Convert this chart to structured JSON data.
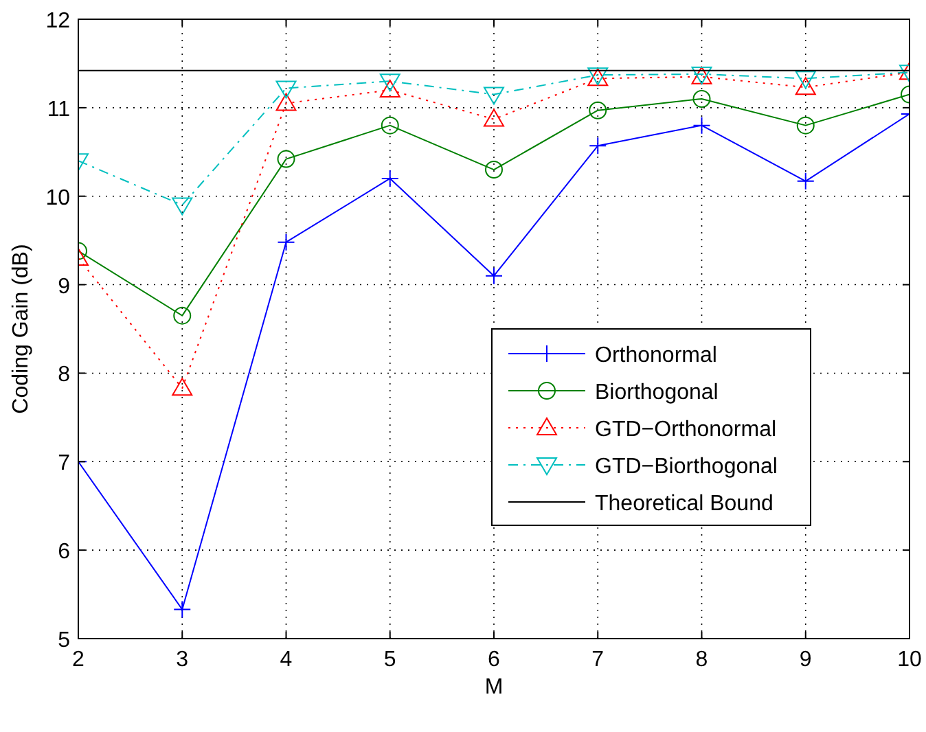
{
  "chart_data": {
    "type": "line",
    "xlabel": "M",
    "ylabel": "Coding Gain (dB)",
    "x": [
      2,
      3,
      4,
      5,
      6,
      7,
      8,
      9,
      10
    ],
    "series": [
      {
        "name": "Orthonormal",
        "color": "#0000ff",
        "marker": "cross",
        "line_style": "solid",
        "values": [
          7.0,
          5.33,
          9.48,
          10.2,
          9.1,
          10.57,
          10.8,
          10.17,
          10.93
        ]
      },
      {
        "name": "Biorthogonal",
        "color": "#008000",
        "marker": "circle",
        "line_style": "solid",
        "values": [
          9.38,
          8.65,
          10.42,
          10.8,
          10.3,
          10.97,
          11.1,
          10.8,
          11.15
        ]
      },
      {
        "name": "GTD−Orthonormal",
        "color": "#ff0000",
        "marker": "triangle",
        "line_style": "dotted",
        "values": [
          9.3,
          7.83,
          11.05,
          11.2,
          10.87,
          11.33,
          11.35,
          11.23,
          11.4
        ]
      },
      {
        "name": "GTD−Biorthogonal",
        "color": "#00bfbf",
        "marker": "triangle-down",
        "line_style": "dashdot",
        "values": [
          10.4,
          9.9,
          11.22,
          11.3,
          11.15,
          11.37,
          11.38,
          11.33,
          11.4
        ]
      },
      {
        "name": "Theoretical Bound",
        "color": "#000000",
        "marker": "none",
        "line_style": "solid",
        "values": [
          11.42,
          11.42,
          11.42,
          11.42,
          11.42,
          11.42,
          11.42,
          11.42,
          11.42
        ]
      }
    ],
    "xlim": [
      2,
      10
    ],
    "xticks": [
      2,
      3,
      4,
      5,
      6,
      7,
      8,
      9,
      10
    ],
    "ylim": [
      5,
      12
    ],
    "yticks": [
      5,
      6,
      7,
      8,
      9,
      10,
      11,
      12
    ],
    "grid": true,
    "legend": "right"
  }
}
